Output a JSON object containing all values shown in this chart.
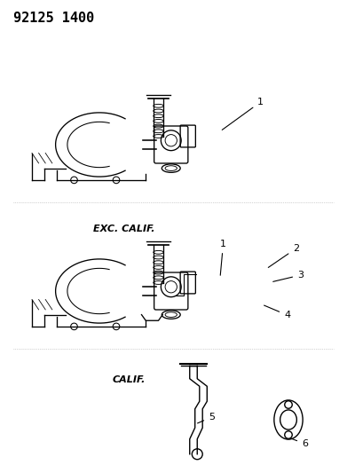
{
  "title": "92125 1400",
  "bg_color": "#ffffff",
  "line_color": "#000000",
  "label_color": "#000000",
  "title_fontsize": 11,
  "label_fontsize": 8,
  "callout_fontsize": 8,
  "exc_calif_label": "EXC. CALIF.",
  "calif_label": "CALIF.",
  "part_numbers": [
    "1",
    "2",
    "3",
    "4",
    "5",
    "6"
  ],
  "figsize": [
    3.91,
    5.33
  ],
  "dpi": 100
}
